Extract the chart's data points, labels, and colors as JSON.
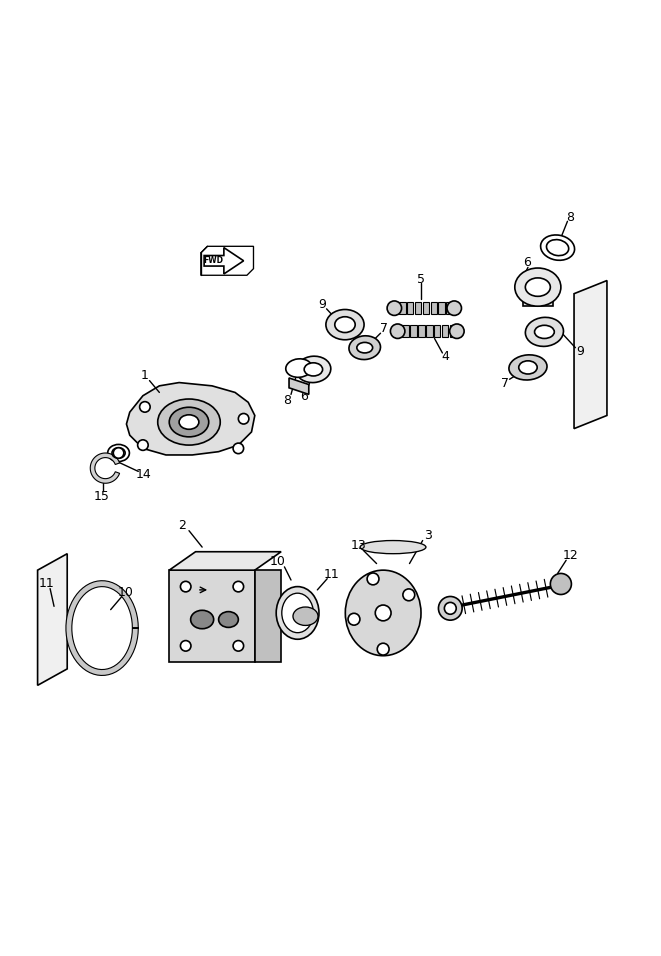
{
  "bg_color": "#ffffff",
  "line_color": "#000000",
  "line_width": 1.2,
  "fig_width": 6.61,
  "fig_height": 9.56,
  "dpi": 100
}
